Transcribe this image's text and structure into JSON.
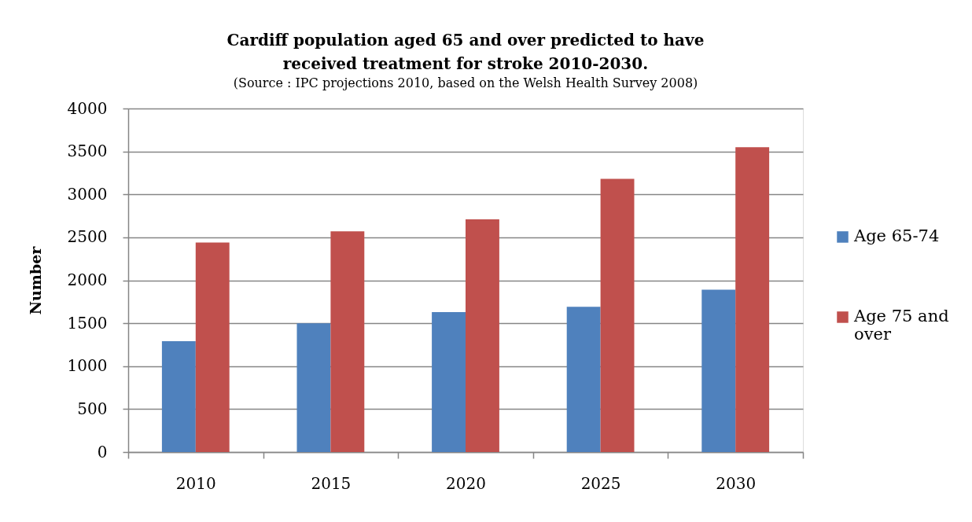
{
  "chart_data": {
    "type": "bar",
    "title": "Cardiff population aged 65 and over predicted to have received treatment for stroke 2010-2030.",
    "annotations": [
      "(Source : IPC projections 2010, based on the Welsh Health Survey 2008)"
    ],
    "ylabel": "Number",
    "categories": [
      "2010",
      "2015",
      "2020",
      "2025",
      "2030"
    ],
    "series": [
      {
        "name": "Age 65-74",
        "color": "#4f81bd",
        "values": [
          1290,
          1500,
          1630,
          1690,
          1890
        ]
      },
      {
        "name": "Age 75 and over",
        "color": "#c0504d",
        "values": [
          2440,
          2570,
          2710,
          3180,
          3550
        ]
      }
    ],
    "ylim": [
      0,
      4000
    ],
    "yticks": [
      0,
      500,
      1000,
      1500,
      2000,
      2500,
      3000,
      3500,
      4000
    ],
    "grid": "y",
    "legend": "right"
  }
}
